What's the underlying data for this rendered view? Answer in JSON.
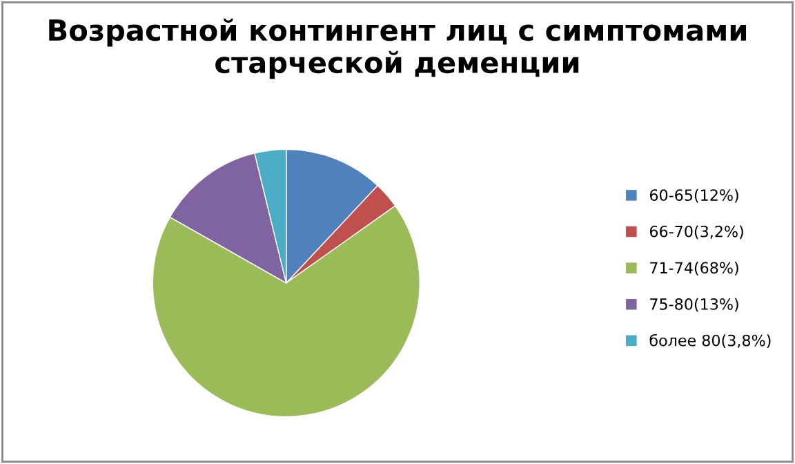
{
  "chart_data": {
    "type": "pie",
    "title": "Возрастной контингент лиц с симптомами\nстарческой деменции",
    "categories": [
      "60-65(12%)",
      "66-70(3,2%)",
      "71-74(68%)",
      "75-80(13%)",
      "более 80(3,8%)"
    ],
    "values": [
      12,
      3.2,
      68,
      13,
      3.8
    ],
    "colors": [
      "#4f81bd",
      "#c0504d",
      "#9bbb59",
      "#8064a2",
      "#4bacc6"
    ],
    "legend": "right"
  }
}
